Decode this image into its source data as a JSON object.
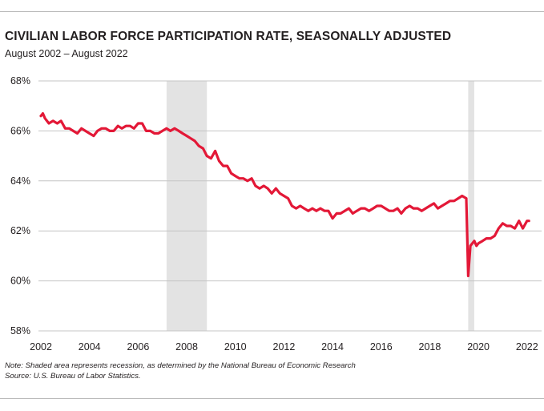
{
  "header": {
    "title": "CIVILIAN LABOR FORCE PARTICIPATION RATE, SEASONALLY ADJUSTED",
    "subtitle": "August 2002 – August 2022"
  },
  "footnotes": {
    "note": "Note: Shaded area represents recession, as determined by the National Bureau of Economic Research",
    "source": "Source: U.S. Bureau of Labor Statistics."
  },
  "chart_data": {
    "type": "line",
    "title": "CIVILIAN LABOR FORCE PARTICIPATION RATE, SEASONALLY ADJUSTED",
    "subtitle": "August 2002 – August 2022",
    "xlabel": "",
    "ylabel": "",
    "xlim": [
      2001.9,
      2022.6
    ],
    "ylim": [
      58,
      68
    ],
    "y_ticks": [
      58,
      60,
      62,
      64,
      66,
      68
    ],
    "y_tick_labels": [
      "58%",
      "60%",
      "62%",
      "64%",
      "66%",
      "68%"
    ],
    "x_ticks": [
      2002,
      2004,
      2006,
      2008,
      2010,
      2012,
      2014,
      2016,
      2018,
      2020,
      2022
    ],
    "x_tick_labels": [
      "2002",
      "2004",
      "2006",
      "2008",
      "2010",
      "2012",
      "2014",
      "2016",
      "2018",
      "2020",
      "2022"
    ],
    "grid": true,
    "line_color": "#e31837",
    "recession_color": "#e3e3e3",
    "recessions": [
      {
        "start": 2007.17,
        "end": 2008.83
      },
      {
        "start": 2019.58,
        "end": 2019.83
      }
    ],
    "series": [
      {
        "name": "Civilian labor force participation rate",
        "x": [
          2002.0,
          2002.08,
          2002.17,
          2002.25,
          2002.33,
          2002.5,
          2002.67,
          2002.83,
          2003.0,
          2003.17,
          2003.33,
          2003.5,
          2003.67,
          2003.83,
          2004.0,
          2004.17,
          2004.33,
          2004.5,
          2004.67,
          2004.83,
          2005.0,
          2005.17,
          2005.33,
          2005.5,
          2005.67,
          2005.83,
          2006.0,
          2006.17,
          2006.33,
          2006.5,
          2006.67,
          2006.83,
          2007.0,
          2007.17,
          2007.33,
          2007.5,
          2007.67,
          2007.83,
          2008.0,
          2008.17,
          2008.33,
          2008.5,
          2008.67,
          2008.83,
          2009.0,
          2009.17,
          2009.33,
          2009.5,
          2009.67,
          2009.83,
          2010.0,
          2010.17,
          2010.33,
          2010.5,
          2010.67,
          2010.83,
          2011.0,
          2011.17,
          2011.33,
          2011.5,
          2011.67,
          2011.83,
          2012.0,
          2012.17,
          2012.33,
          2012.5,
          2012.67,
          2012.83,
          2013.0,
          2013.17,
          2013.33,
          2013.5,
          2013.67,
          2013.83,
          2014.0,
          2014.17,
          2014.33,
          2014.5,
          2014.67,
          2014.83,
          2015.0,
          2015.17,
          2015.33,
          2015.5,
          2015.67,
          2015.83,
          2016.0,
          2016.17,
          2016.33,
          2016.5,
          2016.67,
          2016.83,
          2017.0,
          2017.17,
          2017.33,
          2017.5,
          2017.67,
          2017.83,
          2018.0,
          2018.17,
          2018.33,
          2018.5,
          2018.67,
          2018.83,
          2019.0,
          2019.17,
          2019.33,
          2019.5,
          2019.58,
          2019.67,
          2019.75,
          2019.83,
          2019.92,
          2020.0,
          2020.17,
          2020.33,
          2020.5,
          2020.67,
          2020.83,
          2021.0,
          2021.17,
          2021.33,
          2021.5,
          2021.67,
          2021.83,
          2022.0,
          2022.08
        ],
        "values": [
          66.6,
          66.7,
          66.5,
          66.4,
          66.3,
          66.4,
          66.3,
          66.4,
          66.1,
          66.1,
          66.0,
          65.9,
          66.1,
          66.0,
          65.9,
          65.8,
          66.0,
          66.1,
          66.1,
          66.0,
          66.0,
          66.2,
          66.1,
          66.2,
          66.2,
          66.1,
          66.3,
          66.3,
          66.0,
          66.0,
          65.9,
          65.9,
          66.0,
          66.1,
          66.0,
          66.1,
          66.0,
          65.9,
          65.8,
          65.7,
          65.6,
          65.4,
          65.3,
          65.0,
          64.9,
          65.2,
          64.8,
          64.6,
          64.6,
          64.3,
          64.2,
          64.1,
          64.1,
          64.0,
          64.1,
          63.8,
          63.7,
          63.8,
          63.7,
          63.5,
          63.7,
          63.5,
          63.4,
          63.3,
          63.0,
          62.9,
          63.0,
          62.9,
          62.8,
          62.9,
          62.8,
          62.9,
          62.8,
          62.8,
          62.5,
          62.7,
          62.7,
          62.8,
          62.9,
          62.7,
          62.8,
          62.9,
          62.9,
          62.8,
          62.9,
          63.0,
          63.0,
          62.9,
          62.8,
          62.8,
          62.9,
          62.7,
          62.9,
          63.0,
          62.9,
          62.9,
          62.8,
          62.9,
          63.0,
          63.1,
          62.9,
          63.0,
          63.1,
          63.2,
          63.2,
          63.3,
          63.4,
          63.3,
          60.2,
          61.4,
          61.5,
          61.6,
          61.4,
          61.5,
          61.6,
          61.7,
          61.7,
          61.8,
          62.1,
          62.3,
          62.2,
          62.2,
          62.1,
          62.4,
          62.1,
          62.4,
          62.4
        ]
      }
    ]
  }
}
